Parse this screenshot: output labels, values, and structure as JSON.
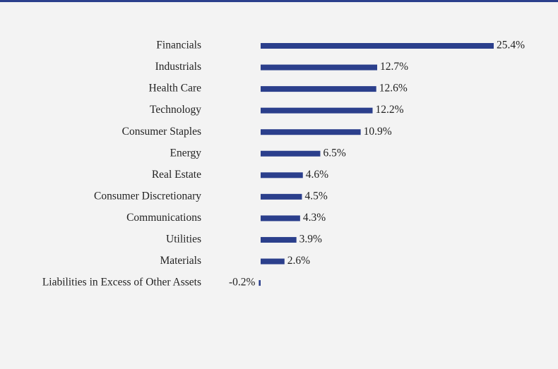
{
  "chart_data": {
    "type": "bar",
    "orientation": "horizontal",
    "color": "#2b3f8c",
    "categories": [
      "Financials",
      "Industrials",
      "Health Care",
      "Technology",
      "Consumer Staples",
      "Energy",
      "Real Estate",
      "Consumer Discretionary",
      "Communications",
      "Utilities",
      "Materials",
      "Liabilities in Excess of Other Assets"
    ],
    "values": [
      25.4,
      12.7,
      12.6,
      12.2,
      10.9,
      6.5,
      4.6,
      4.5,
      4.3,
      3.9,
      2.6,
      -0.2
    ],
    "value_labels": [
      "25.4%",
      "12.7%",
      "12.6%",
      "12.2%",
      "10.9%",
      "6.5%",
      "4.6%",
      "4.5%",
      "4.3%",
      "3.9%",
      "2.6%",
      "-0.2%"
    ]
  }
}
